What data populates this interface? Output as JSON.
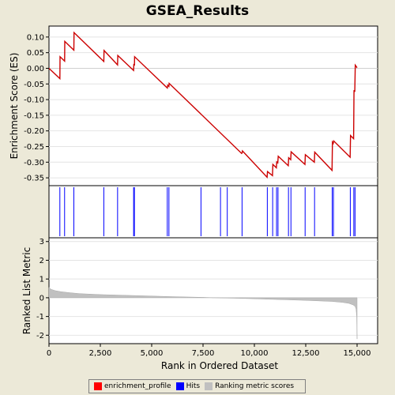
{
  "title": "GSEA_Results",
  "legend": [
    {
      "label": "enrichment_profile",
      "color": "#ff0000"
    },
    {
      "label": "Hits",
      "color": "#0000ff"
    },
    {
      "label": "Ranking metric scores",
      "color": "#c0c0c0"
    }
  ],
  "chart_data": {
    "type": "line",
    "x_label": "Rank in Ordered Dataset",
    "x_range": [
      0,
      16000
    ],
    "x_ticks": [
      0,
      2500,
      5000,
      7500,
      10000,
      12500,
      15000
    ],
    "x_tick_labels": [
      "0",
      "2,500",
      "5,000",
      "7,500",
      "10,000",
      "12,500",
      "15,000"
    ],
    "es_panel": {
      "y_label": "Enrichment Score (ES)",
      "y_range": [
        -0.375,
        0.135
      ],
      "y_ticks": [
        0.1,
        0.05,
        0.0,
        -0.05,
        -0.1,
        -0.15,
        -0.2,
        -0.25,
        -0.3,
        -0.35
      ],
      "y_tick_labels": [
        "0.10",
        "0.05",
        "0.00",
        "-0.05",
        "-0.10",
        "-0.15",
        "-0.20",
        "-0.25",
        "-0.30",
        "-0.35"
      ],
      "line_color": "#cc0000",
      "x": [
        0,
        530,
        540,
        760,
        770,
        1210,
        1220,
        2670,
        2680,
        3340,
        3350,
        4120,
        4130,
        4160,
        4170,
        5760,
        5780,
        5840,
        5850,
        9380,
        9400,
        9420,
        10620,
        10640,
        10880,
        10900,
        11070,
        11090,
        11140,
        11160,
        11650,
        11670,
        11770,
        11790,
        12460,
        12480,
        12920,
        12940,
        13780,
        13800,
        13840,
        13860,
        14660,
        14680,
        14830,
        14850,
        14890,
        14910,
        15000
      ],
      "y": [
        0.0,
        -0.033,
        0.037,
        0.023,
        0.086,
        0.058,
        0.114,
        0.022,
        0.057,
        0.011,
        0.041,
        -0.007,
        0.012,
        0.011,
        0.037,
        -0.063,
        -0.054,
        -0.058,
        -0.048,
        -0.272,
        -0.271,
        -0.264,
        -0.348,
        -0.33,
        -0.343,
        -0.307,
        -0.318,
        -0.299,
        -0.302,
        -0.281,
        -0.311,
        -0.286,
        -0.292,
        -0.267,
        -0.307,
        -0.276,
        -0.3,
        -0.268,
        -0.326,
        -0.236,
        -0.24,
        -0.232,
        -0.284,
        -0.215,
        -0.225,
        -0.07,
        -0.075,
        0.01,
        0.002
      ]
    },
    "hits_panel": {
      "hit_color": "#0000ff",
      "hits": [
        530,
        760,
        1210,
        2670,
        3340,
        4120,
        4160,
        5760,
        5840,
        7400,
        8350,
        8680,
        9400,
        10630,
        10890,
        11080,
        11150,
        11660,
        11780,
        12470,
        12930,
        13790,
        13850,
        14670,
        14840,
        14900
      ]
    },
    "metric_panel": {
      "y_label": "Ranked List Metric",
      "y_range": [
        -2.45,
        3.2
      ],
      "y_ticks": [
        3,
        2,
        1,
        0,
        -1,
        -2
      ],
      "y_tick_labels": [
        "3",
        "2",
        "1",
        "0",
        "-1",
        "-2"
      ],
      "fill_color": "#c0c0c0",
      "n_genes": 15000,
      "x": [
        0,
        100,
        300,
        600,
        1000,
        1500,
        2500,
        4000,
        6000,
        7500,
        8000,
        9500,
        11000,
        12500,
        13800,
        14300,
        14600,
        14800,
        14900,
        14950,
        14980,
        15000
      ],
      "y": [
        0.55,
        0.45,
        0.38,
        0.32,
        0.27,
        0.22,
        0.17,
        0.12,
        0.06,
        0.02,
        0.0,
        -0.04,
        -0.09,
        -0.14,
        -0.2,
        -0.25,
        -0.3,
        -0.38,
        -0.45,
        -0.6,
        -1.0,
        -2.2
      ]
    }
  }
}
